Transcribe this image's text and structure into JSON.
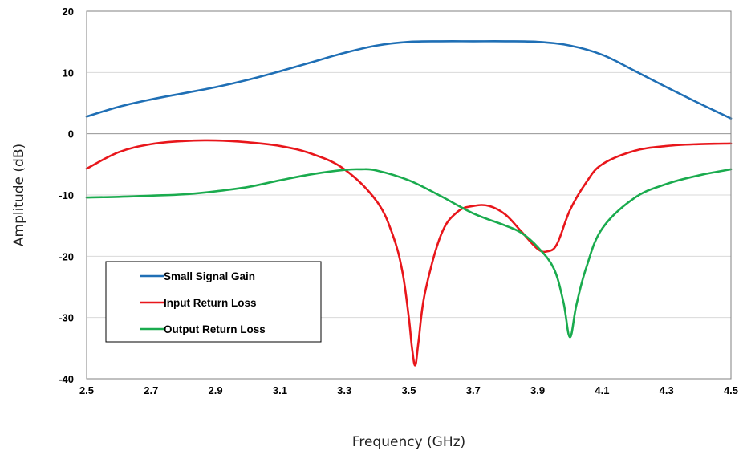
{
  "chart_data": {
    "type": "line",
    "xlabel": "Frequency (GHz)",
    "ylabel": "Amplitude (dB)",
    "xlim": [
      2.5,
      4.5
    ],
    "ylim": [
      -40,
      20
    ],
    "xticks": [
      2.5,
      2.7,
      2.9,
      3.1,
      3.3,
      3.5,
      3.7,
      3.9,
      4.1,
      4.3,
      4.5
    ],
    "xtick_labels": [
      "2.5",
      "2.7",
      "2.9",
      "3.1",
      "3.3",
      "3.5",
      "3.7",
      "3.9",
      "4.1",
      "4.3",
      "4.5"
    ],
    "yticks": [
      -40,
      -30,
      -20,
      -10,
      0,
      10,
      20
    ],
    "ytick_labels": [
      "-40",
      "-30",
      "-20",
      "-10",
      "0",
      "10",
      "20"
    ],
    "grid": true,
    "legend_position": "bottom-left",
    "series": [
      {
        "name": "Small Signal Gain",
        "color": "#1f6fb5",
        "x": [
          2.5,
          2.6,
          2.7,
          2.8,
          2.9,
          3.0,
          3.1,
          3.2,
          3.3,
          3.4,
          3.5,
          3.6,
          3.7,
          3.8,
          3.9,
          4.0,
          4.1,
          4.2,
          4.3,
          4.4,
          4.5
        ],
        "y": [
          2.8,
          4.4,
          5.6,
          6.6,
          7.6,
          8.8,
          10.2,
          11.7,
          13.2,
          14.4,
          15.0,
          15.1,
          15.1,
          15.1,
          15.0,
          14.4,
          12.9,
          10.3,
          7.6,
          5.0,
          2.5
        ]
      },
      {
        "name": "Input Return Loss",
        "color": "#e8161b",
        "x": [
          2.5,
          2.6,
          2.7,
          2.8,
          2.9,
          3.0,
          3.1,
          3.2,
          3.3,
          3.4,
          3.45,
          3.48,
          3.5,
          3.51,
          3.52,
          3.53,
          3.55,
          3.6,
          3.65,
          3.7,
          3.75,
          3.8,
          3.85,
          3.9,
          3.93,
          3.96,
          4.0,
          4.05,
          4.1,
          4.2,
          4.3,
          4.4,
          4.5
        ],
        "y": [
          -5.7,
          -3.0,
          -1.7,
          -1.2,
          -1.1,
          -1.4,
          -2.0,
          -3.3,
          -5.8,
          -11.0,
          -16.5,
          -22.5,
          -30.0,
          -35.0,
          -37.8,
          -34.0,
          -26.0,
          -16.5,
          -12.8,
          -11.8,
          -11.8,
          -13.2,
          -16.0,
          -18.8,
          -19.2,
          -18.0,
          -12.5,
          -8.0,
          -5.0,
          -2.8,
          -2.0,
          -1.7,
          -1.6
        ]
      },
      {
        "name": "Output Return Loss",
        "color": "#1aab4e",
        "x": [
          2.5,
          2.6,
          2.7,
          2.8,
          2.9,
          3.0,
          3.1,
          3.2,
          3.3,
          3.35,
          3.4,
          3.5,
          3.6,
          3.7,
          3.8,
          3.85,
          3.9,
          3.95,
          3.98,
          4.0,
          4.02,
          4.05,
          4.1,
          4.2,
          4.3,
          4.4,
          4.5
        ],
        "y": [
          -10.4,
          -10.3,
          -10.1,
          -9.9,
          -9.4,
          -8.7,
          -7.6,
          -6.6,
          -5.9,
          -5.8,
          -6.0,
          -7.6,
          -10.2,
          -13.0,
          -15.0,
          -16.2,
          -18.5,
          -22.0,
          -27.5,
          -33.2,
          -28.0,
          -22.0,
          -15.5,
          -10.5,
          -8.2,
          -6.8,
          -5.8
        ]
      }
    ]
  }
}
